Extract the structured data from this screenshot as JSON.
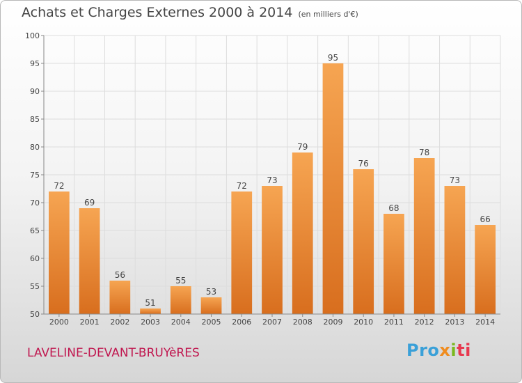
{
  "title": "Achats et Charges Externes 2000 à 2014",
  "subtitle": "(en milliers d'€)",
  "commune": "LAVELINE-DEVANT-BRUYèRES",
  "logo": {
    "p1": "Pro",
    "p2": "x",
    "p3": "i",
    "p4": "ti"
  },
  "colors": {
    "bar_top": "#f6a552",
    "bar_bottom": "#d86e1e",
    "grid": "#dddddd",
    "axis": "#888888"
  },
  "chart_data": {
    "type": "bar",
    "categories": [
      "2000",
      "2001",
      "2002",
      "2003",
      "2004",
      "2005",
      "2006",
      "2007",
      "2008",
      "2009",
      "2010",
      "2011",
      "2012",
      "2013",
      "2014"
    ],
    "values": [
      72,
      69,
      56,
      51,
      55,
      53,
      72,
      73,
      79,
      95,
      76,
      68,
      78,
      73,
      66
    ],
    "ylim": [
      50,
      100
    ],
    "yticks": [
      50,
      55,
      60,
      65,
      70,
      75,
      80,
      85,
      90,
      95,
      100
    ],
    "grid": true,
    "xlabel": "",
    "ylabel": ""
  }
}
